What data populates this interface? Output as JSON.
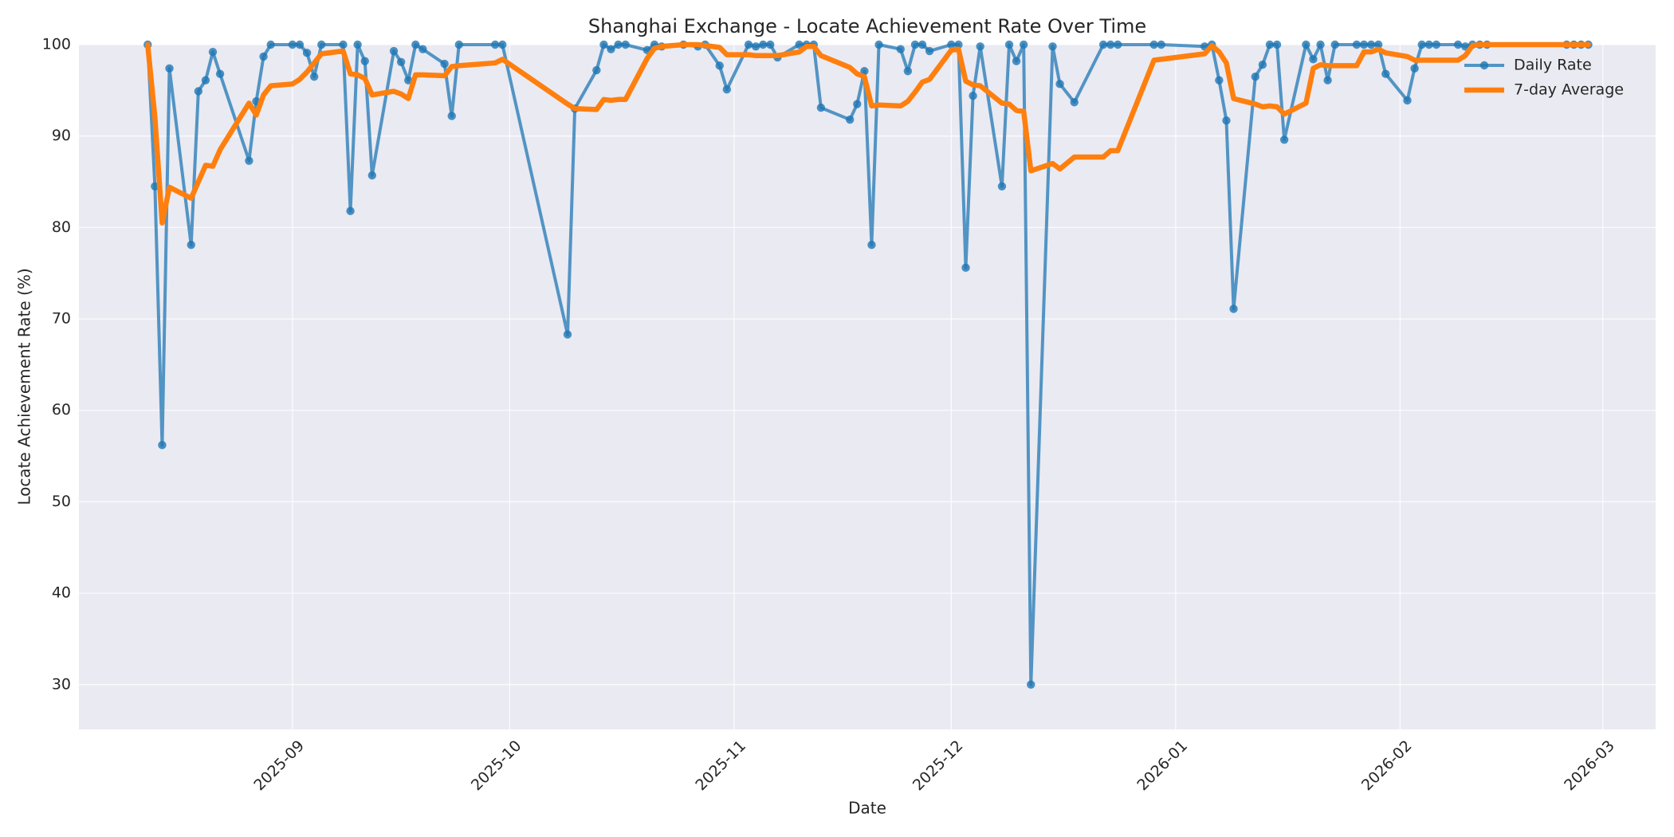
{
  "chart_data": {
    "type": "line",
    "title": "Shanghai Exchange - Locate Achievement Rate Over Time",
    "xlabel": "Date",
    "ylabel": "Locate Achievement Rate (%)",
    "x": [
      -20,
      -19,
      -18,
      -17,
      -14,
      -13,
      -12,
      -11,
      -10,
      -6,
      -5,
      -4,
      -3,
      0,
      1,
      2,
      3,
      4,
      7,
      8,
      9,
      10,
      11,
      14,
      15,
      16,
      17,
      18,
      21,
      22,
      23,
      28,
      29,
      38,
      39,
      42,
      43,
      44,
      45,
      46,
      49,
      50,
      51,
      54,
      56,
      57,
      59,
      60,
      63,
      64,
      65,
      66,
      67,
      70,
      71,
      72,
      73,
      77,
      78,
      79,
      80,
      81,
      84,
      85,
      86,
      87,
      88,
      91,
      92,
      93,
      94,
      95,
      98,
      99,
      100,
      101,
      102,
      105,
      106,
      108,
      112,
      113,
      114,
      119,
      120,
      126,
      127,
      128,
      129,
      130,
      133,
      134,
      135,
      136,
      137,
      140,
      141,
      142,
      143,
      144,
      147,
      148,
      149,
      150,
      151,
      154,
      155,
      156,
      157,
      158,
      161,
      162,
      163,
      164,
      165,
      176,
      177,
      178,
      179
    ],
    "series": [
      {
        "name": "Daily Rate",
        "color": "#1f77b4",
        "marker": true,
        "values": [
          100,
          84.5,
          56.2,
          97.4,
          78.1,
          94.9,
          96.1,
          99.2,
          96.8,
          87.3,
          93.8,
          98.7,
          100,
          100,
          100,
          99.1,
          96.5,
          100,
          100,
          81.8,
          100,
          98.2,
          85.7,
          99.3,
          98.1,
          96.1,
          100,
          99.5,
          97.9,
          92.2,
          100,
          100,
          100,
          68.3,
          93,
          97.2,
          100,
          99.5,
          100,
          100,
          99.4,
          100,
          99.8,
          100,
          99.8,
          100,
          97.7,
          95.1,
          100,
          99.8,
          100,
          100,
          98.6,
          100,
          100,
          100,
          93.1,
          91.8,
          93.5,
          97.1,
          78.1,
          100,
          99.5,
          97.1,
          100,
          100,
          99.3,
          100,
          100,
          75.6,
          94.4,
          99.8,
          84.5,
          100,
          98.2,
          100,
          30,
          99.8,
          95.7,
          93.7,
          100,
          100,
          100,
          100,
          100,
          99.8,
          100,
          96.1,
          91.7,
          71.1,
          96.5,
          97.8,
          100,
          100,
          89.6,
          100,
          98.4,
          100,
          96.1,
          100,
          100,
          100,
          100,
          100,
          96.8,
          93.9,
          97.4,
          100,
          100,
          100,
          100,
          99.8,
          100,
          100,
          100,
          100,
          100,
          100,
          100
        ]
      },
      {
        "name": "7-day Average",
        "color": "#ff7f0e",
        "marker": false,
        "values": [
          100,
          92,
          80.5,
          84.4,
          83.2,
          85,
          86.8,
          86.7,
          88.5,
          93.6,
          92.3,
          94.5,
          95.5,
          95.7,
          96.2,
          97,
          98,
          99,
          99.3,
          96.8,
          96.7,
          96.3,
          94.5,
          94.9,
          94.6,
          94.1,
          96.7,
          96.7,
          96.6,
          97.6,
          97.7,
          98,
          98.4,
          93.5,
          93,
          92.9,
          94,
          93.9,
          94,
          94,
          98.5,
          99.6,
          99.8,
          100,
          100,
          99.9,
          99.7,
          98.9,
          98.9,
          98.8,
          98.8,
          98.8,
          98.8,
          99.2,
          99.8,
          99.8,
          98.8,
          97.5,
          96.8,
          96.5,
          93.3,
          93.4,
          93.3,
          93.8,
          94.8,
          95.9,
          96.2,
          99.4,
          99.5,
          96,
          95.6,
          95.5,
          93.6,
          93.5,
          92.8,
          92.7,
          86.2,
          87,
          86.4,
          87.7,
          87.7,
          88.4,
          88.4,
          98.3,
          98.4,
          99,
          99.9,
          99.2,
          98,
          94.1,
          93.5,
          93.2,
          93.3,
          93.2,
          92.4,
          93.6,
          97.4,
          97.8,
          97.7,
          97.7,
          97.7,
          99.2,
          99.2,
          99.5,
          99.1,
          98.7,
          98.3,
          98.3,
          98.3,
          98.3,
          98.3,
          98.8,
          99.9,
          100,
          100,
          100,
          100,
          100,
          100
        ]
      }
    ],
    "xlim": [
      -29.5,
      188.3
    ],
    "xticks": [
      {
        "value": 0,
        "label": "2025-09"
      },
      {
        "value": 30,
        "label": "2025-10"
      },
      {
        "value": 61,
        "label": "2025-11"
      },
      {
        "value": 91,
        "label": "2025-12"
      },
      {
        "value": 122,
        "label": "2026-01"
      },
      {
        "value": 153,
        "label": "2026-02"
      },
      {
        "value": 181,
        "label": "2026-03"
      }
    ],
    "ylim": [
      25.1,
      100
    ],
    "yticks": [
      30,
      40,
      50,
      60,
      70,
      80,
      90,
      100
    ],
    "grid": true,
    "legend": "upper right"
  }
}
